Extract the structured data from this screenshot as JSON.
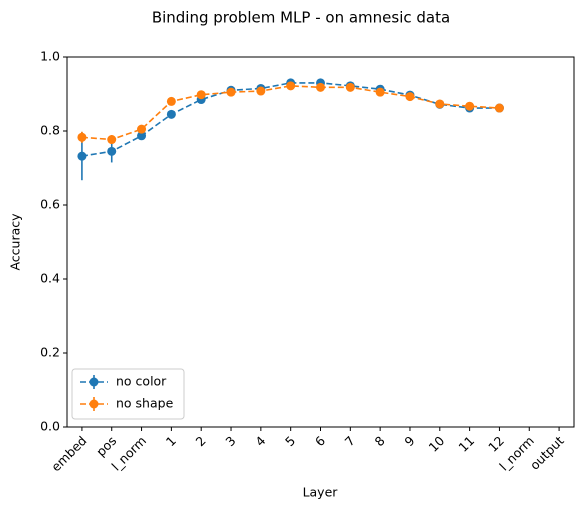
{
  "chart_data": {
    "type": "line",
    "title": "Binding problem MLP - on amnesic data",
    "xlabel": "Layer",
    "ylabel": "Accuracy",
    "categories": [
      "embed",
      "pos",
      "l_norm",
      "1",
      "2",
      "3",
      "4",
      "5",
      "6",
      "7",
      "8",
      "9",
      "10",
      "11",
      "12",
      "l_norm",
      "output"
    ],
    "series": [
      {
        "name": "no color",
        "color": "#1f77b4",
        "values": [
          0.732,
          0.745,
          0.787,
          0.845,
          0.885,
          0.91,
          0.915,
          0.93,
          0.93,
          0.922,
          0.913,
          0.897,
          0.872,
          0.862,
          0.862,
          null,
          null
        ],
        "errors": [
          0.065,
          0.03,
          0.01,
          0.006,
          0.006,
          0.005,
          0.005,
          0.005,
          0.005,
          0.005,
          0.005,
          0.005,
          0.005,
          0.005,
          0.005,
          null,
          null
        ]
      },
      {
        "name": "no shape",
        "color": "#ff7f0e",
        "values": [
          0.783,
          0.777,
          0.805,
          0.88,
          0.898,
          0.905,
          0.908,
          0.922,
          0.918,
          0.918,
          0.905,
          0.893,
          0.873,
          0.867,
          0.862,
          null,
          null
        ],
        "errors": [
          0.015,
          0.012,
          0.006,
          0.005,
          0.005,
          0.005,
          0.005,
          0.005,
          0.005,
          0.005,
          0.005,
          0.005,
          0.005,
          0.005,
          0.005,
          null,
          null
        ]
      }
    ],
    "ylim": [
      0,
      1
    ],
    "yticks": [
      {
        "value": 0,
        "label": "0.0"
      },
      0.2,
      0.4,
      0.6,
      0.8,
      {
        "value": 1,
        "label": "1.0"
      }
    ],
    "line_style": "dashed",
    "marker": "circle",
    "legend": "lower left",
    "grid": false
  }
}
